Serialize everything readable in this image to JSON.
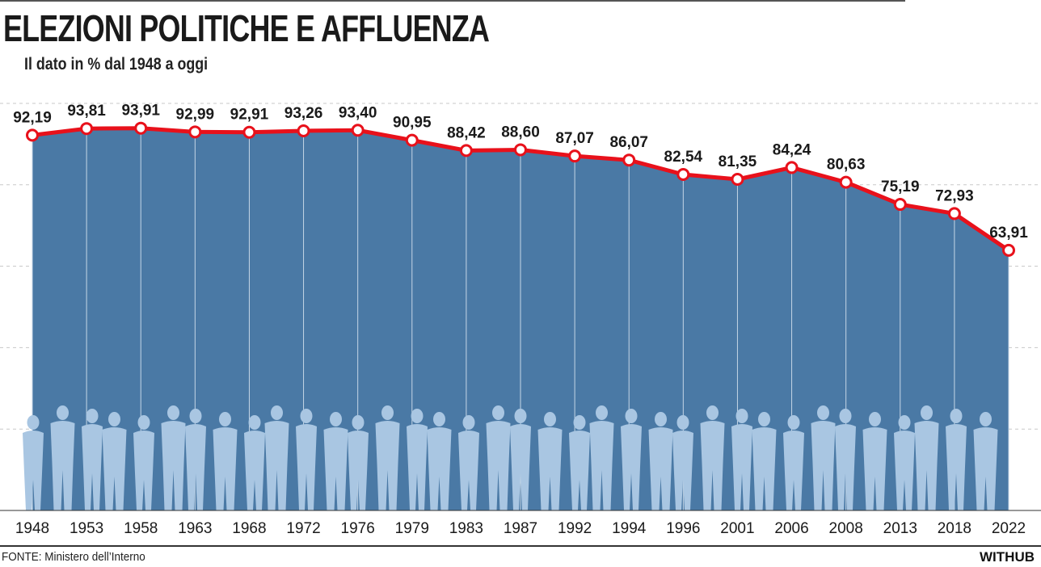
{
  "header": {
    "title": "ELEZIONI POLITICHE E AFFLUENZA",
    "subtitle": "Il dato in % dal 1948 a oggi"
  },
  "footer": {
    "source": "FONTE: Ministero dell’Interno",
    "brand": "WITHUB"
  },
  "colors": {
    "area": "#4a79a5",
    "line": "#e8111b",
    "silhouettes": "#a9c6e2",
    "grid": "#c8c8c8"
  },
  "chart_data": {
    "type": "area",
    "title": "ELEZIONI POLITICHE E AFFLUENZA",
    "subtitle": "Il dato in % dal 1948 a oggi",
    "categories": [
      "1948",
      "1953",
      "1958",
      "1963",
      "1968",
      "1972",
      "1976",
      "1979",
      "1983",
      "1987",
      "1992",
      "1994",
      "1996",
      "2001",
      "2006",
      "2008",
      "2013",
      "2018",
      "2022"
    ],
    "value_labels": [
      "92,19",
      "93,81",
      "93,91",
      "92,99",
      "92,91",
      "93,26",
      "93,40",
      "90,95",
      "88,42",
      "88,60",
      "87,07",
      "86,07",
      "82,54",
      "81,35",
      "84,24",
      "80,63",
      "75,19",
      "72,93",
      "63,91"
    ],
    "series": [
      {
        "values": [
          92.19,
          93.81,
          93.91,
          92.99,
          92.91,
          93.26,
          93.4,
          90.95,
          88.42,
          88.6,
          87.07,
          86.07,
          82.54,
          81.35,
          84.24,
          80.63,
          75.19,
          72.93,
          63.91
        ]
      }
    ],
    "xlabel": "",
    "ylabel": "",
    "ylim": [
      0,
      100
    ],
    "grid": true,
    "legend": "none"
  }
}
